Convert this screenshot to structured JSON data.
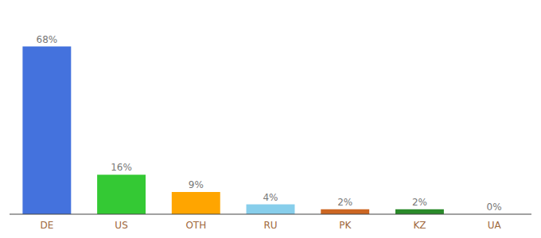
{
  "chart_data": {
    "type": "bar",
    "categories": [
      "DE",
      "US",
      "OTH",
      "RU",
      "PK",
      "KZ",
      "UA"
    ],
    "values": [
      68,
      16,
      9,
      4,
      2,
      2,
      0
    ],
    "value_labels": [
      "68%",
      "16%",
      "9%",
      "4%",
      "2%",
      "2%",
      "0%"
    ],
    "colors": [
      "#4472dd",
      "#34c934",
      "#ffa500",
      "#87ceeb",
      "#cc6622",
      "#2a8a2a",
      "#cccccc"
    ],
    "ylim": [
      0,
      82.96
    ],
    "data_labels": true,
    "tick_labels": "x",
    "grid": false
  }
}
